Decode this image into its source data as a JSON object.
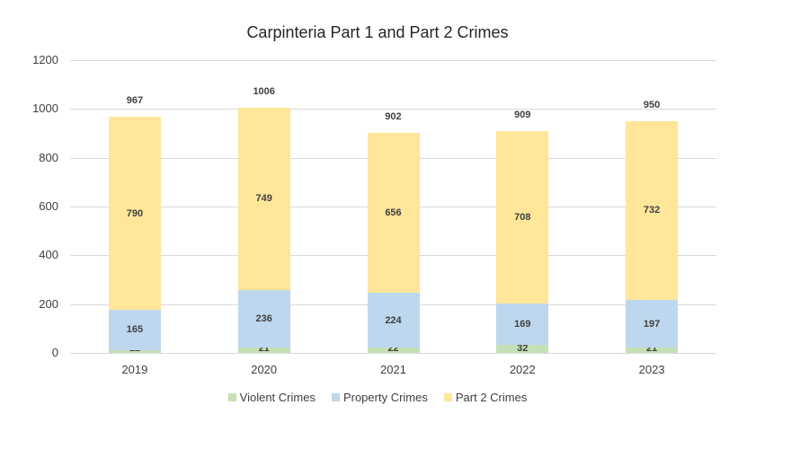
{
  "chart_data": {
    "type": "bar",
    "stacked": true,
    "title": "Carpinteria Part 1 and Part 2 Crimes",
    "xlabel": "",
    "ylabel": "",
    "ylim": [
      0,
      1200
    ],
    "yticks": [
      "0",
      "200",
      "400",
      "600",
      "800",
      "1000",
      "1200"
    ],
    "grid": true,
    "legend_position": "bottom",
    "categories": [
      "2019",
      "2020",
      "2021",
      "2022",
      "2023"
    ],
    "series": [
      {
        "name": "Violent Crimes",
        "color": "#c5e0b4",
        "values": [
          12,
          21,
          22,
          32,
          21
        ]
      },
      {
        "name": "Property Crimes",
        "color": "#bdd7ee",
        "values": [
          165,
          236,
          224,
          169,
          197
        ]
      },
      {
        "name": "Part 2 Crimes",
        "color": "#ffe699",
        "values": [
          790,
          749,
          656,
          708,
          732
        ]
      }
    ],
    "totals": [
      967,
      1006,
      902,
      909,
      950
    ]
  },
  "legend": {
    "items": [
      {
        "label": "Violent Crimes",
        "color": "#c5e0b4"
      },
      {
        "label": "Property Crimes",
        "color": "#bdd7ee"
      },
      {
        "label": "Part 2 Crimes",
        "color": "#ffe699"
      }
    ]
  }
}
